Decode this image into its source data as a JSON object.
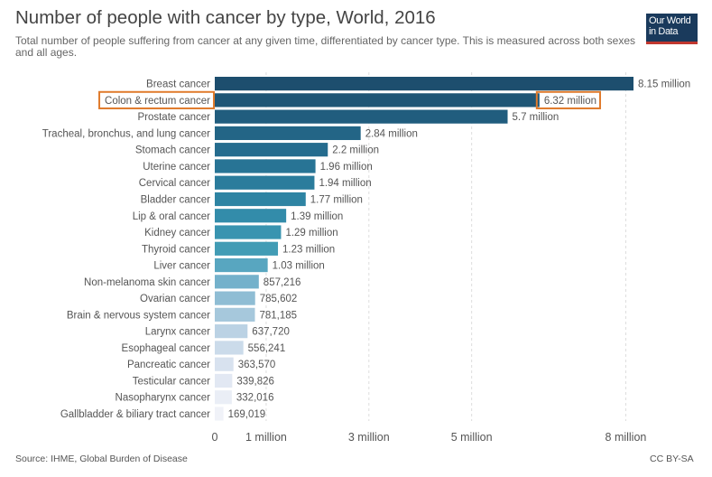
{
  "header": {
    "title": "Number of people with cancer by type, World, 2016",
    "subtitle": "Total number of people suffering from cancer at any given time, differentiated by cancer type. This is measured across both sexes and all ages."
  },
  "logo": {
    "line1": "Our World",
    "line2": "in Data"
  },
  "footer": {
    "source": "Source: IHME, Global Burden of Disease",
    "license": "CC BY-SA"
  },
  "chart_data": {
    "type": "bar",
    "orientation": "horizontal",
    "title": "Number of people with cancer by type, World, 2016",
    "xlabel": "",
    "ylabel": "",
    "xlim": [
      0,
      8150000
    ],
    "grid": true,
    "highlighted": "Colon & rectum cancer",
    "x_ticks": [
      {
        "value": 0,
        "label": "0"
      },
      {
        "value": 1000000,
        "label": "1 million"
      },
      {
        "value": 3000000,
        "label": "3 million"
      },
      {
        "value": 5000000,
        "label": "5 million"
      },
      {
        "value": 8000000,
        "label": "8 million"
      }
    ],
    "bars": [
      {
        "category": "Breast cancer",
        "value": 8150000,
        "label": "8.15 million",
        "color": "#1d4e6e"
      },
      {
        "category": "Colon & rectum cancer",
        "value": 6320000,
        "label": "6.32 million",
        "color": "#1f5676"
      },
      {
        "category": "Prostate cancer",
        "value": 5700000,
        "label": "5.7 million",
        "color": "#215d7e"
      },
      {
        "category": "Tracheal, bronchus, and lung cancer",
        "value": 2840000,
        "label": "2.84 million",
        "color": "#236586"
      },
      {
        "category": "Stomach cancer",
        "value": 2200000,
        "label": "2.2 million",
        "color": "#256c8e"
      },
      {
        "category": "Uterine cancer",
        "value": 1960000,
        "label": "1.96 million",
        "color": "#287495"
      },
      {
        "category": "Cervical cancer",
        "value": 1940000,
        "label": "1.94 million",
        "color": "#2b7c9c"
      },
      {
        "category": "Bladder cancer",
        "value": 1770000,
        "label": "1.77 million",
        "color": "#2e84a3"
      },
      {
        "category": "Lip & oral cancer",
        "value": 1390000,
        "label": "1.39 million",
        "color": "#338caa"
      },
      {
        "category": "Kidney cancer",
        "value": 1290000,
        "label": "1.29 million",
        "color": "#3994b0"
      },
      {
        "category": "Thyroid cancer",
        "value": 1230000,
        "label": "1.23 million",
        "color": "#429cb5"
      },
      {
        "category": "Liver cancer",
        "value": 1030000,
        "label": "1.03 million",
        "color": "#58a6c0"
      },
      {
        "category": "Non-melanoma skin cancer",
        "value": 857216,
        "label": "857,216",
        "color": "#74b1cb"
      },
      {
        "category": "Ovarian cancer",
        "value": 785602,
        "label": "785,602",
        "color": "#8fbdd4"
      },
      {
        "category": "Brain & nervous system cancer",
        "value": 781185,
        "label": "781,185",
        "color": "#a6c8dc"
      },
      {
        "category": "Larynx cancer",
        "value": 637720,
        "label": "637,720",
        "color": "#bbd2e4"
      },
      {
        "category": "Esophageal cancer",
        "value": 556241,
        "label": "556,241",
        "color": "#cbdbea"
      },
      {
        "category": "Pancreatic cancer",
        "value": 363570,
        "label": "363,570",
        "color": "#d8e2ef"
      },
      {
        "category": "Testicular cancer",
        "value": 339826,
        "label": "339,826",
        "color": "#e2e8f3"
      },
      {
        "category": "Nasopharynx cancer",
        "value": 332016,
        "label": "332,016",
        "color": "#eaeef6"
      },
      {
        "category": "Gallbladder & biliary tract cancer",
        "value": 169019,
        "label": "169,019",
        "color": "#f0f2f8"
      }
    ]
  }
}
